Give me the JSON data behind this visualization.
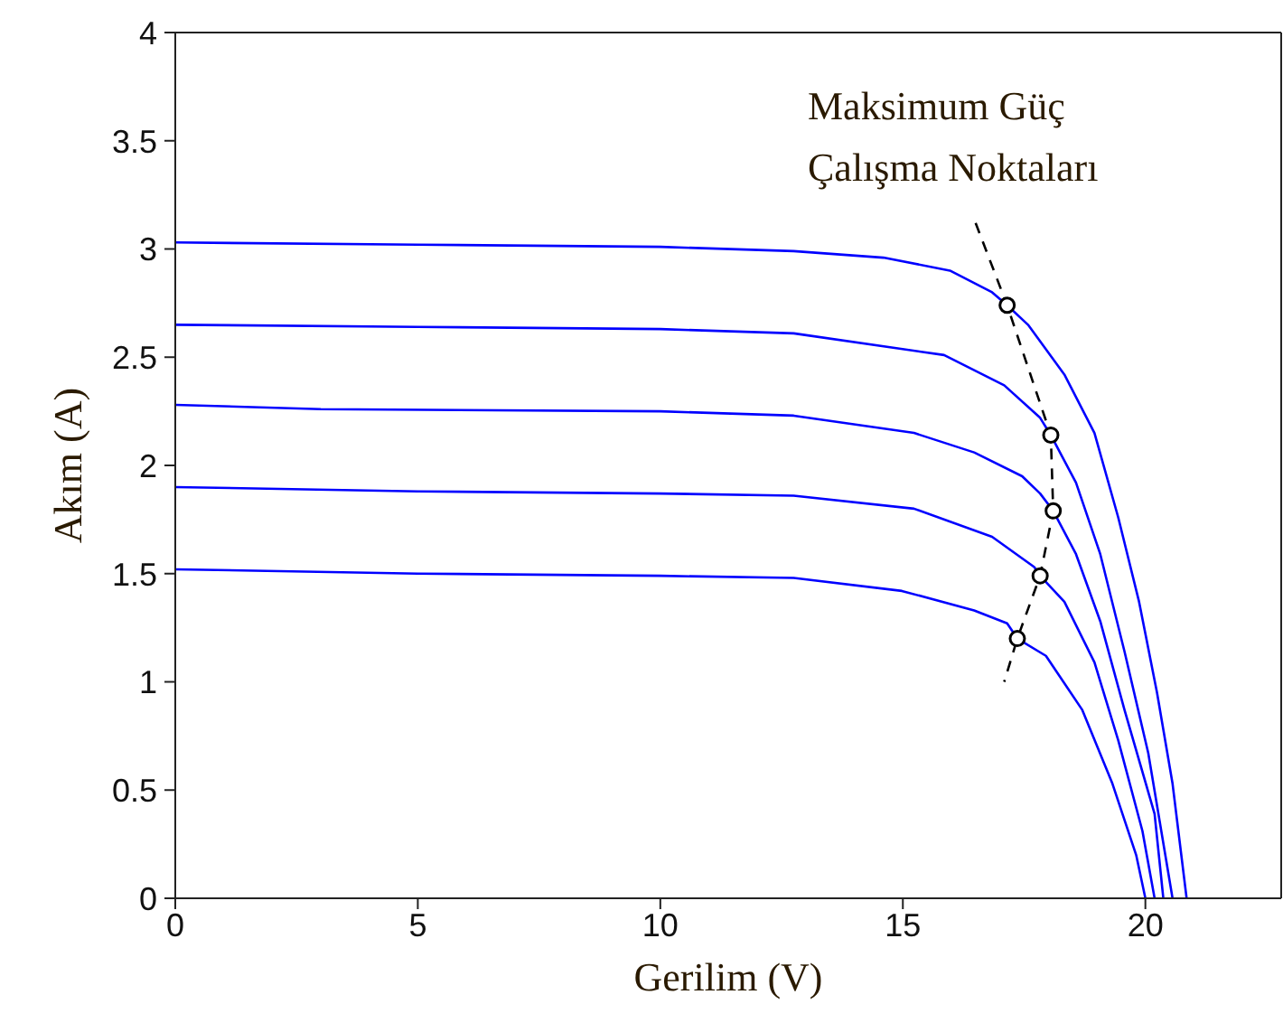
{
  "chart_data": {
    "type": "line",
    "xlabel": "Gerilim (V)",
    "ylabel": "Akım (A)",
    "annotations": [
      "Maksimum Güç\nÇalışma Noktaları"
    ],
    "xlim": [
      0,
      22.8
    ],
    "xticks": [
      0,
      5,
      10,
      15,
      20
    ],
    "ylim": [
      0,
      4
    ],
    "yticks": [
      0,
      0.5,
      1,
      1.5,
      2,
      2.5,
      3,
      3.5,
      4
    ],
    "grid": false,
    "legend": false,
    "series": [
      {
        "color": "#0000ff",
        "line_style": "solid",
        "marker": "none",
        "x": [
          0,
          5,
          10,
          12.75,
          14.6,
          15.97,
          16.84,
          17.15,
          17.58,
          18.33,
          18.95,
          19.44,
          19.87,
          20.24,
          20.56,
          20.85
        ],
        "values": [
          3.03,
          3.02,
          3.01,
          2.99,
          2.96,
          2.9,
          2.8,
          2.74,
          2.65,
          2.42,
          2.15,
          1.76,
          1.37,
          0.95,
          0.53,
          0
        ]
      },
      {
        "color": "#0000ff",
        "line_style": "solid",
        "marker": "none",
        "x": [
          0,
          5,
          10,
          12.75,
          15.85,
          17.09,
          17.83,
          18.05,
          18.57,
          19.07,
          19.57,
          20.06,
          20.56
        ],
        "values": [
          2.65,
          2.64,
          2.63,
          2.61,
          2.51,
          2.37,
          2.22,
          2.14,
          1.92,
          1.59,
          1.14,
          0.67,
          0
        ]
      },
      {
        "color": "#0000ff",
        "line_style": "solid",
        "marker": "none",
        "x": [
          0,
          3,
          10,
          12.75,
          15.23,
          16.47,
          17.46,
          17.83,
          18.1,
          18.57,
          19.07,
          19.57,
          20.19,
          20.37
        ],
        "values": [
          2.28,
          2.26,
          2.25,
          2.23,
          2.15,
          2.06,
          1.95,
          1.87,
          1.79,
          1.59,
          1.28,
          0.87,
          0.39,
          0
        ]
      },
      {
        "color": "#0000ff",
        "line_style": "solid",
        "marker": "none",
        "x": [
          0,
          5,
          10,
          12.75,
          15.23,
          16.84,
          17.71,
          17.83,
          18.33,
          18.95,
          19.44,
          19.94,
          20.19
        ],
        "values": [
          1.9,
          1.88,
          1.87,
          1.86,
          1.8,
          1.67,
          1.53,
          1.49,
          1.37,
          1.09,
          0.73,
          0.31,
          0
        ]
      },
      {
        "color": "#0000ff",
        "line_style": "solid",
        "marker": "none",
        "x": [
          0,
          5,
          10,
          12.75,
          14.98,
          16.47,
          17.15,
          17.36,
          17.95,
          18.7,
          19.32,
          19.81,
          20.0
        ],
        "values": [
          1.52,
          1.5,
          1.49,
          1.48,
          1.42,
          1.33,
          1.27,
          1.2,
          1.12,
          0.87,
          0.53,
          0.2,
          0
        ]
      },
      {
        "color": "#000000",
        "line_style": "dashed",
        "marker": "none",
        "x": [
          16.5,
          17.15,
          18.05,
          18.1,
          17.83,
          17.36,
          17.09
        ],
        "values": [
          3.12,
          2.74,
          2.14,
          1.79,
          1.49,
          1.2,
          1.0
        ]
      },
      {
        "type": "scatter",
        "color": "#000000",
        "marker": "circle",
        "x": [
          17.15,
          18.05,
          18.1,
          17.83,
          17.36
        ],
        "values": [
          2.74,
          2.14,
          1.79,
          1.49,
          1.2
        ]
      }
    ]
  }
}
